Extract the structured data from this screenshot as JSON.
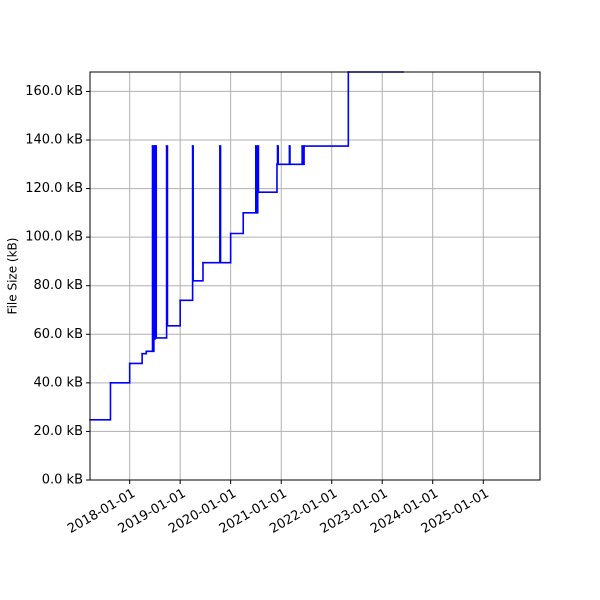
{
  "chart_data": {
    "type": "line",
    "title": "",
    "xlabel": "",
    "ylabel": "File Size (kB)",
    "x_type": "date",
    "xlim": [
      "2017-03-20",
      "2026-02-15"
    ],
    "ylim": [
      0,
      168
    ],
    "grid": true,
    "colors": {
      "series": "#0000ff",
      "grid": "#b0b0b0",
      "axes": "#000000"
    },
    "xticks": [
      {
        "value": "2018-01-01",
        "label": "2018-01-01"
      },
      {
        "value": "2019-01-01",
        "label": "2019-01-01"
      },
      {
        "value": "2020-01-01",
        "label": "2020-01-01"
      },
      {
        "value": "2021-01-01",
        "label": "2021-01-01"
      },
      {
        "value": "2022-01-01",
        "label": "2022-01-01"
      },
      {
        "value": "2023-01-01",
        "label": "2023-01-01"
      },
      {
        "value": "2024-01-01",
        "label": "2024-01-01"
      },
      {
        "value": "2025-01-01",
        "label": "2025-01-01"
      }
    ],
    "yticks": [
      {
        "value": 0,
        "label": "0.0 kB"
      },
      {
        "value": 20,
        "label": "20.0 kB"
      },
      {
        "value": 40,
        "label": "40.0 kB"
      },
      {
        "value": 60,
        "label": "60.0 kB"
      },
      {
        "value": 80,
        "label": "80.0 kB"
      },
      {
        "value": 100,
        "label": "100.0 kB"
      },
      {
        "value": 120,
        "label": "120.0 kB"
      },
      {
        "value": 140,
        "label": "140.0 kB"
      },
      {
        "value": 160,
        "label": "160.0 kB"
      }
    ],
    "series": [
      {
        "step": "post",
        "points": [
          {
            "x": "2017-03-20",
            "y": 24.8
          },
          {
            "x": "2017-08-15",
            "y": 40.0
          },
          {
            "x": "2018-01-01",
            "y": 48.0
          },
          {
            "x": "2018-04-01",
            "y": 52.0
          },
          {
            "x": "2018-05-01",
            "y": 53.0
          },
          {
            "x": "2018-06-15",
            "y": 137.5
          },
          {
            "x": "2018-06-20",
            "y": 53.0
          },
          {
            "x": "2018-06-25",
            "y": 137.5
          },
          {
            "x": "2018-06-28",
            "y": 58.0
          },
          {
            "x": "2018-07-02",
            "y": 137.5
          },
          {
            "x": "2018-07-05",
            "y": 58.5
          },
          {
            "x": "2018-07-08",
            "y": 137.5
          },
          {
            "x": "2018-07-12",
            "y": 58.5
          },
          {
            "x": "2018-09-25",
            "y": 137.5
          },
          {
            "x": "2018-10-01",
            "y": 63.5
          },
          {
            "x": "2019-01-01",
            "y": 74.0
          },
          {
            "x": "2019-04-01",
            "y": 137.5
          },
          {
            "x": "2019-04-05",
            "y": 82.0
          },
          {
            "x": "2019-06-15",
            "y": 89.5
          },
          {
            "x": "2019-10-15",
            "y": 137.5
          },
          {
            "x": "2019-10-20",
            "y": 89.5
          },
          {
            "x": "2020-01-01",
            "y": 101.5
          },
          {
            "x": "2020-04-01",
            "y": 110.0
          },
          {
            "x": "2020-07-01",
            "y": 137.5
          },
          {
            "x": "2020-07-05",
            "y": 110.0
          },
          {
            "x": "2020-07-15",
            "y": 137.5
          },
          {
            "x": "2020-07-20",
            "y": 118.5
          },
          {
            "x": "2020-12-01",
            "y": 130.0
          },
          {
            "x": "2020-12-05",
            "y": 137.5
          },
          {
            "x": "2020-12-10",
            "y": 130.0
          },
          {
            "x": "2021-03-01",
            "y": 137.5
          },
          {
            "x": "2021-03-05",
            "y": 130.0
          },
          {
            "x": "2021-06-01",
            "y": 137.5
          },
          {
            "x": "2021-06-05",
            "y": 130.0
          },
          {
            "x": "2021-06-15",
            "y": 137.5
          },
          {
            "x": "2022-05-01",
            "y": 168.0
          },
          {
            "x": "2023-06-01",
            "y": 168.0
          }
        ]
      }
    ]
  }
}
